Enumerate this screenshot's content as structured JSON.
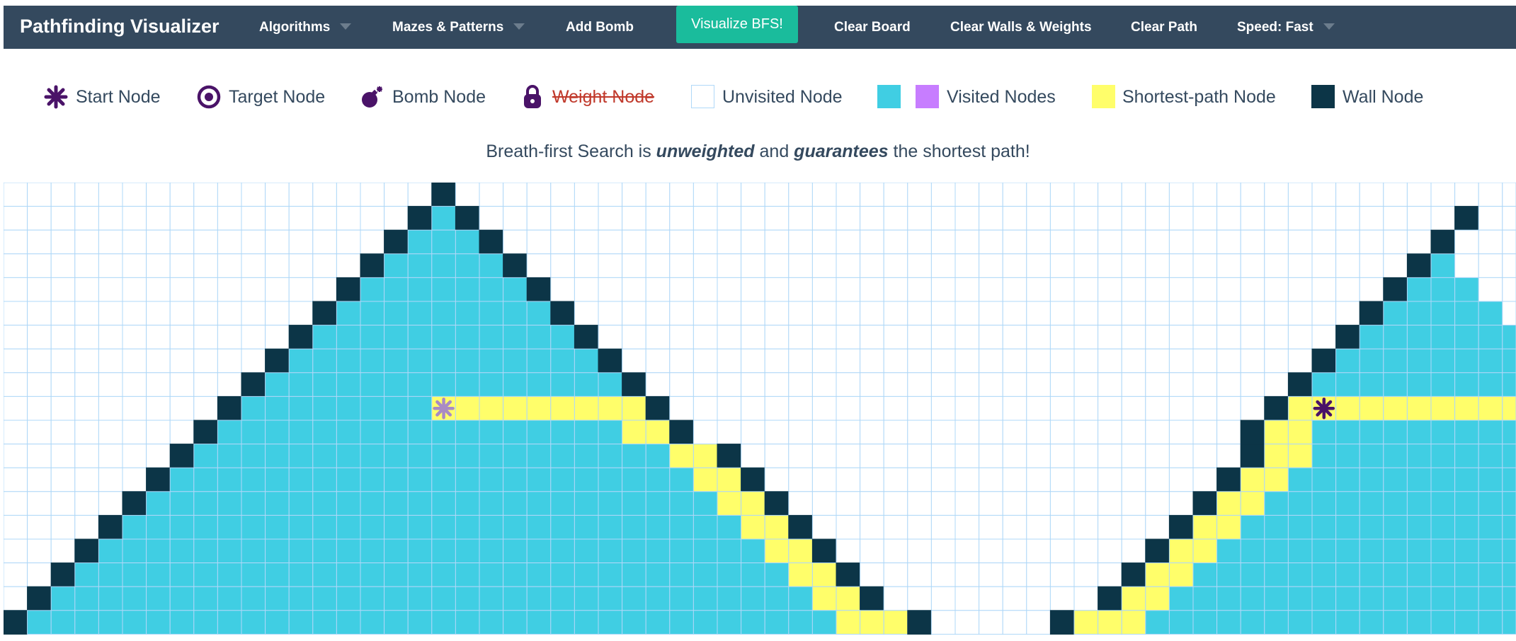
{
  "navbar": {
    "brand": "Pathfinding Visualizer",
    "items": [
      {
        "label": "Algorithms",
        "caret": true
      },
      {
        "label": "Mazes & Patterns",
        "caret": true
      },
      {
        "label": "Add Bomb",
        "caret": false
      },
      {
        "label": "Clear Board",
        "caret": false
      },
      {
        "label": "Clear Walls & Weights",
        "caret": false
      },
      {
        "label": "Clear Path",
        "caret": false
      },
      {
        "label": "Speed: Fast",
        "caret": true
      }
    ],
    "visualize_label": "Visualize BFS!"
  },
  "legend": {
    "start": "Start Node",
    "target": "Target Node",
    "bomb": "Bomb Node",
    "weight": "Weight Node",
    "unvisited": "Unvisited Node",
    "visited": "Visited Nodes",
    "shortest": "Shortest-path Node",
    "wall": "Wall Node"
  },
  "info": {
    "prefix": "Breath-first Search is ",
    "emph1": "unweighted",
    "middle": " and ",
    "emph2": "guarantees",
    "suffix": " the shortest path!"
  },
  "colors": {
    "navbar": "#34495e",
    "visualize_button": "#1abc9c",
    "wall": "#0c3547",
    "visited": "#40cee3",
    "visited_alt": "#c77dff",
    "shortest_path": "#fffe6a",
    "grid_line": "#afd8f8",
    "node_purple": "#4a1368",
    "weight_text": "#c0392b"
  },
  "grid": {
    "rows": 19,
    "cols": 64,
    "start": [
      9,
      18
    ],
    "target": [
      9,
      55
    ],
    "rows_data": [
      "..................W.............................................",
      ".................WVW.........................................W..",
      "................WVVVW.......................................W...",
      "...............WVVVVVW.....................................WV...",
      "..............WVVVVVVVW...................................WVVV..",
      ".............WVVVVVVVVVW.................................WVVVVV.",
      "............WVVVVVVVVVVVW...............................WVVVVVVV",
      "...........WVVVVVVVVVVVVVW.............................WVVVVVVVV",
      "..........WVVVVVVVVVVVVVVVW...........................WVVVVVVVVV",
      ".........WVVVVVVVVPPPPPPPPPW.........................WPPPPPPPPPP",
      "........WVVVVVVVVVVVVVVVVVPPW.......................WPPVVVVVVVVV",
      ".......WVVVVVVVVVVVVVVVVVVVVPPW.....................WPPVVVVVVVVVV",
      "......WVVVVVVVVVVVVVVVVVVVVVVPPW...................WPPVVVVVVVVVVV",
      ".....WVVVVVVVVVVVVVVVVVVVVVVVVPPW.................WPPVVVVVVVVVVVV",
      "....WVVVVVVVVVVVVVVVVVVVVVVVVVVPPW...............WPPVVVVVVVVVVVVV",
      "...WVVVVVVVVVVVVVVVVVVVVVVVVVVVVPPW.............WPPVVVVVVVVVVVVVV",
      "..WVVVVVVVVVVVVVVVVVVVVVVVVVVVVVVPPW...........WPPVVVVVVVVVVVVVVV",
      ".WVVVVVVVVVVVVVVVVVVVVVVVVVVVVVVVVPPW.........WPPVVVVVVVVVVVVVVVV",
      "WVVVVVVVVVVVVVVVVVVVVVVVVVVVVVVVVVVPPPW.....WPPPVVVVVVVVVVVVVVVVV"
    ]
  }
}
